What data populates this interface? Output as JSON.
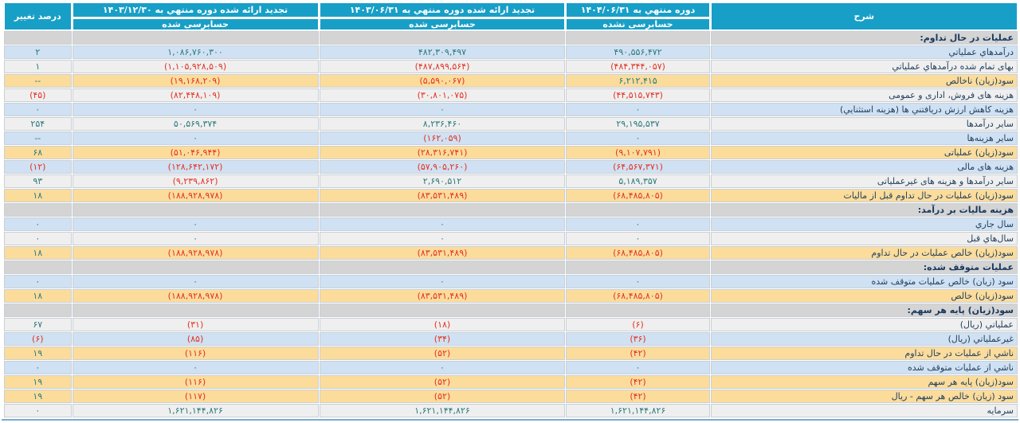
{
  "colors": {
    "header_bg": "#189fc7",
    "header_text": "#ffffff",
    "row_blue": "#cfe1f2",
    "row_white": "#efefef",
    "row_yellow": "#fbdc9b",
    "row_section": "#d4d4d4",
    "positive_number": "#2c7a80",
    "negative_number": "#e53222",
    "label_text": "#24415f",
    "bottom_border": "#7aabce"
  },
  "table": {
    "desc_header": "شرح",
    "change_header": "درصد تغییر",
    "period_columns": [
      {
        "key": "current",
        "title": "دوره منتهي به ۱۴۰۴/۰۶/۳۱",
        "audit": "حسابرسی نشده"
      },
      {
        "key": "restated-prior",
        "title": "تجدید ارائه شده دوره منتهي به ۱۴۰۳/۰۶/۳۱",
        "audit": "حسابرسی شده"
      },
      {
        "key": "restated-annual",
        "title": "تجدید ارائه شده دوره منتهي به ۱۴۰۳/۱۲/۳۰",
        "audit": "حسابرسی شده"
      }
    ],
    "rows": [
      {
        "label": "عملیات در حال تداوم:",
        "variant": "section",
        "values": [
          "",
          "",
          ""
        ],
        "change": ""
      },
      {
        "label": "درآمدهاي عملياتي",
        "variant": "blue",
        "values": [
          "۴۹۰,۵۵۶,۴۷۲",
          "۴۸۲,۳۰۹,۴۹۷",
          "۱,۰۸۶,۷۶۰,۳۰۰"
        ],
        "change": "۲"
      },
      {
        "label": "بهای تمام شده درآمدهاي عملياتي",
        "variant": "white",
        "values": [
          "(۴۸۴,۳۴۴,۰۵۷)",
          "(۴۸۷,۸۹۹,۵۶۴)",
          "(۱,۱۰۵,۹۲۸,۵۰۹)"
        ],
        "change": "۱"
      },
      {
        "label": "سود(زیان) ناخالص",
        "variant": "yellow",
        "values": [
          "۶,۲۱۲,۴۱۵",
          "(۵,۵۹۰,۰۶۷)",
          "(۱۹,۱۶۸,۲۰۹)"
        ],
        "change": "--"
      },
      {
        "label": "هزینه های فروش، اداری و عمومی",
        "variant": "white",
        "values": [
          "(۴۴,۵۱۵,۷۴۳)",
          "(۳۰,۸۰۱,۰۷۵)",
          "(۸۲,۴۴۸,۱۰۹)"
        ],
        "change": "(۴۵)"
      },
      {
        "label": "هزینه کاهش ارزش دریافتني ها (هزینه استثنایي)",
        "variant": "blue",
        "values": [
          "۰",
          "۰",
          "۰"
        ],
        "change": "۰"
      },
      {
        "label": "سایر درآمدها",
        "variant": "white",
        "values": [
          "۲۹,۱۹۵,۵۳۷",
          "۸,۲۳۶,۴۶۰",
          "۵۰,۵۶۹,۳۷۴"
        ],
        "change": "۲۵۴"
      },
      {
        "label": "سایر هزینه‌ها",
        "variant": "blue",
        "values": [
          "۰",
          "(۱۶۲,۰۵۹)",
          "۰"
        ],
        "change": "--"
      },
      {
        "label": "سود(زیان) عملیاتی",
        "variant": "yellow",
        "values": [
          "(۹,۱۰۷,۷۹۱)",
          "(۲۸,۳۱۶,۷۴۱)",
          "(۵۱,۰۴۶,۹۴۴)"
        ],
        "change": "۶۸"
      },
      {
        "label": "هزینه های مالی",
        "variant": "blue",
        "values": [
          "(۶۴,۵۶۷,۳۷۱)",
          "(۵۷,۹۰۵,۲۶۰)",
          "(۱۲۸,۶۴۲,۱۷۲)"
        ],
        "change": "(۱۲)"
      },
      {
        "label": "سایر درآمدها و هزینه های غیرعملیاتی",
        "variant": "white",
        "values": [
          "۵,۱۸۹,۳۵۷",
          "۲,۶۹۰,۵۱۲",
          "(۹,۲۳۹,۸۶۲)"
        ],
        "change": "۹۳"
      },
      {
        "label": "سود(زیان) عملیات در حال تداوم قبل از مالیات",
        "variant": "yellow",
        "values": [
          "(۶۸,۴۸۵,۸۰۵)",
          "(۸۳,۵۳۱,۴۸۹)",
          "(۱۸۸,۹۲۸,۹۷۸)"
        ],
        "change": "۱۸"
      },
      {
        "label": "هزینه مالیات بر درآمد:",
        "variant": "section",
        "values": [
          "",
          "",
          ""
        ],
        "change": ""
      },
      {
        "label": "سال جاري",
        "variant": "blue",
        "values": [
          "۰",
          "۰",
          "۰"
        ],
        "change": "۰"
      },
      {
        "label": "سال‌هاي قبل",
        "variant": "white",
        "values": [
          "۰",
          "۰",
          "۰"
        ],
        "change": "۰"
      },
      {
        "label": "سود(زیان) خالص عملیات در حال تداوم",
        "variant": "yellow",
        "values": [
          "(۶۸,۴۸۵,۸۰۵)",
          "(۸۳,۵۳۱,۴۸۹)",
          "(۱۸۸,۹۲۸,۹۷۸)"
        ],
        "change": "۱۸"
      },
      {
        "label": "عملیات متوقف شده:",
        "variant": "section",
        "values": [
          "",
          "",
          ""
        ],
        "change": ""
      },
      {
        "label": "سود (زیان) خالص عملیات متوقف شده",
        "variant": "blue",
        "values": [
          "۰",
          "۰",
          "۰"
        ],
        "change": "۰"
      },
      {
        "label": "سود(زیان) خالص",
        "variant": "yellow",
        "values": [
          "(۶۸,۴۸۵,۸۰۵)",
          "(۸۳,۵۳۱,۴۸۹)",
          "(۱۸۸,۹۲۸,۹۷۸)"
        ],
        "change": "۱۸"
      },
      {
        "label": "سود(زیان) پایه هر سهم:",
        "variant": "section",
        "values": [
          "",
          "",
          ""
        ],
        "change": ""
      },
      {
        "label": "عملیاتي (ریال)",
        "variant": "white",
        "values": [
          "(۶)",
          "(۱۸)",
          "(۳۱)"
        ],
        "change": "۶۷"
      },
      {
        "label": "غیرعملیاتي (ریال)",
        "variant": "blue",
        "values": [
          "(۳۶)",
          "(۳۴)",
          "(۸۵)"
        ],
        "change": "(۶)"
      },
      {
        "label": "ناشي از عملیات در حال تداوم",
        "variant": "yellow",
        "values": [
          "(۴۲)",
          "(۵۲)",
          "(۱۱۶)"
        ],
        "change": "۱۹"
      },
      {
        "label": "ناشي از عملیات متوقف شده",
        "variant": "blue",
        "values": [
          "۰",
          "۰",
          "۰"
        ],
        "change": "۰"
      },
      {
        "label": "سود(زیان) پایه هر سهم",
        "variant": "yellow",
        "values": [
          "(۴۲)",
          "(۵۲)",
          "(۱۱۶)"
        ],
        "change": "۱۹"
      },
      {
        "label": "سود (زیان) خالص هر سهم - ریال",
        "variant": "yellow",
        "values": [
          "(۴۲)",
          "(۵۲)",
          "(۱۱۷)"
        ],
        "change": "۱۹"
      },
      {
        "label": "سرمایه",
        "variant": "white",
        "values": [
          "۱,۶۲۱,۱۴۴,۸۲۶",
          "۱,۶۲۱,۱۴۴,۸۲۶",
          "۱,۶۲۱,۱۴۴,۸۲۶"
        ],
        "change": "۰"
      }
    ]
  }
}
